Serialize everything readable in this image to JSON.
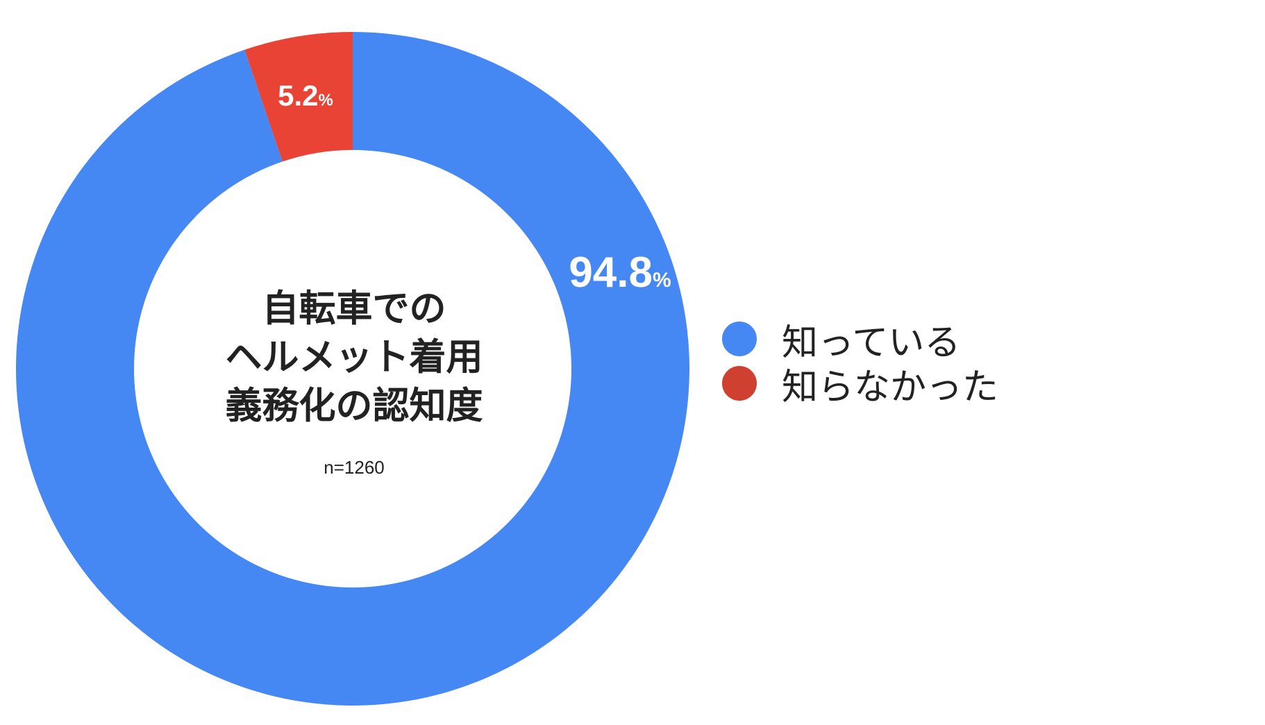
{
  "chart_data": {
    "type": "pie",
    "donut": true,
    "title_lines": [
      "自転車での",
      "ヘルメット着用",
      "義務化の認知度"
    ],
    "subtitle": "n=1260",
    "slices": [
      {
        "name": "知っている",
        "value": 94.8,
        "label": "94.8",
        "unit": "%",
        "color": "#4587f3"
      },
      {
        "name": "知らなかった",
        "value": 5.2,
        "label": "5.2",
        "unit": "%",
        "color": "#e84335"
      }
    ],
    "legend_placement": "right"
  },
  "legend": [
    {
      "label": "知っている",
      "color": "#4587f3"
    },
    {
      "label": "知らなかった",
      "color": "#cf4030"
    }
  ]
}
